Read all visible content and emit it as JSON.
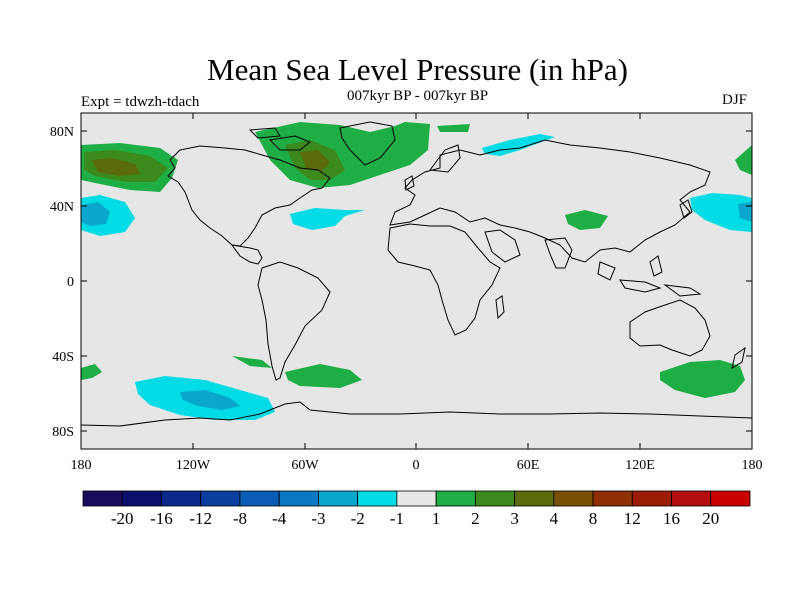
{
  "header": {
    "title": "Mean Sea Level Pressure (in hPa)",
    "subtitle": "007kyr BP - 007kyr BP",
    "expt": "Expt = tdwzh-tdach",
    "season": "DJF"
  },
  "map": {
    "lat_labels": [
      "80N",
      "40N",
      "0",
      "40S",
      "80S"
    ],
    "lon_labels": [
      "180",
      "120W",
      "60W",
      "0",
      "60E",
      "120E",
      "180"
    ]
  },
  "colorbar": {
    "colors": [
      "#1a0a5c",
      "#0a0f6e",
      "#0c2a8c",
      "#0a3fa0",
      "#0a5cb4",
      "#0a78c4",
      "#0aa6cc",
      "#00dce6",
      "#e6e6e6",
      "#1fae46",
      "#3c8a1e",
      "#5a6a0c",
      "#7a5004",
      "#8e3004",
      "#9c1c06",
      "#b40e0e",
      "#cc0000"
    ],
    "labels": [
      "-20",
      "-16",
      "-12",
      "-8",
      "-4",
      "-3",
      "-2",
      "-1",
      "1",
      "2",
      "3",
      "4",
      "8",
      "12",
      "16",
      "20"
    ]
  }
}
